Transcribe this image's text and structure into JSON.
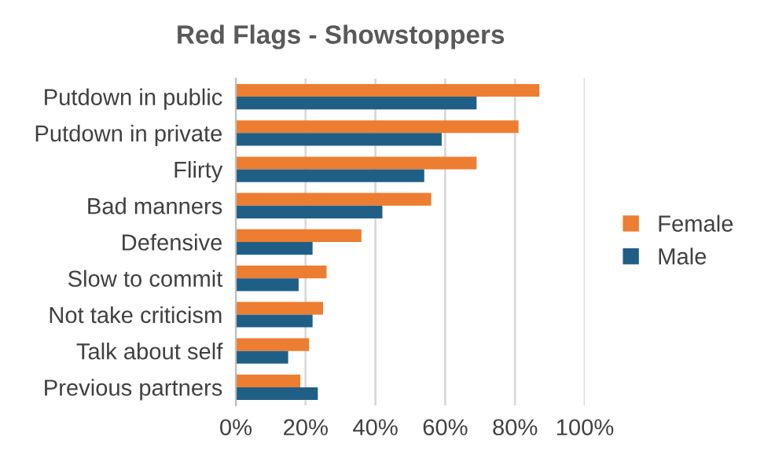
{
  "chart_data": {
    "type": "bar",
    "orientation": "horizontal",
    "title": "Red Flags - Showstoppers",
    "categories": [
      "Putdown in public",
      "Putdown in private",
      "Flirty",
      "Bad manners",
      "Defensive",
      "Slow to commit",
      "Not take criticism",
      "Talk about self",
      "Previous partners"
    ],
    "series": [
      {
        "name": "Female",
        "color": "#ed7d31",
        "values": [
          87,
          81,
          69,
          56,
          36,
          26,
          25,
          21,
          18.5
        ]
      },
      {
        "name": "Male",
        "color": "#1f5f86",
        "values": [
          69,
          59,
          54,
          42,
          22,
          18,
          22,
          15,
          23.5
        ]
      }
    ],
    "xlim": [
      0,
      100
    ],
    "xticks": [
      {
        "value": 0,
        "label": "0%"
      },
      {
        "value": 20,
        "label": "20%"
      },
      {
        "value": 40,
        "label": "40%"
      },
      {
        "value": 60,
        "label": "60%"
      },
      {
        "value": 80,
        "label": "80%"
      },
      {
        "value": 100,
        "label": "100%"
      }
    ],
    "grid": "x",
    "legend": "right"
  }
}
